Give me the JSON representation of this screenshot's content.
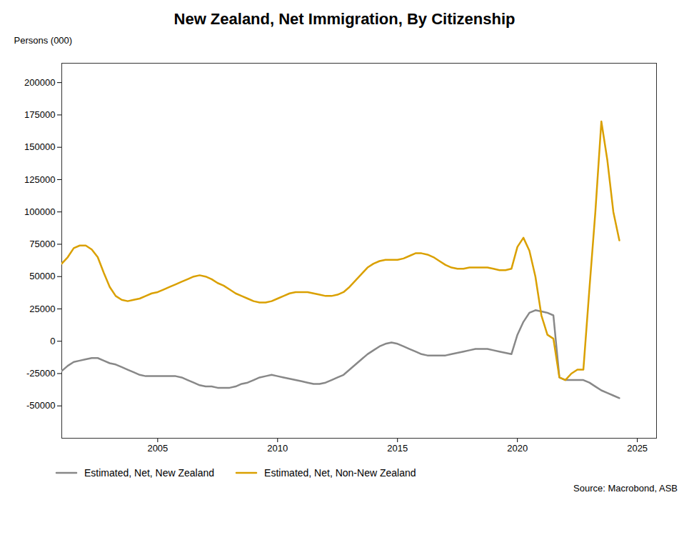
{
  "chart_data": {
    "type": "line",
    "title": "New Zealand, Net Immigration, By Citizenship",
    "ylabel": "Persons (000)",
    "annotations": [
      "Source: Macrobond, ASB"
    ],
    "x": [
      2001.0,
      2001.25,
      2001.5,
      2001.75,
      2002.0,
      2002.25,
      2002.5,
      2002.75,
      2003.0,
      2003.25,
      2003.5,
      2003.75,
      2004.0,
      2004.25,
      2004.5,
      2004.75,
      2005.0,
      2005.25,
      2005.5,
      2005.75,
      2006.0,
      2006.25,
      2006.5,
      2006.75,
      2007.0,
      2007.25,
      2007.5,
      2007.75,
      2008.0,
      2008.25,
      2008.5,
      2008.75,
      2009.0,
      2009.25,
      2009.5,
      2009.75,
      2010.0,
      2010.25,
      2010.5,
      2010.75,
      2011.0,
      2011.25,
      2011.5,
      2011.75,
      2012.0,
      2012.25,
      2012.5,
      2012.75,
      2013.0,
      2013.25,
      2013.5,
      2013.75,
      2014.0,
      2014.25,
      2014.5,
      2014.75,
      2015.0,
      2015.25,
      2015.5,
      2015.75,
      2016.0,
      2016.25,
      2016.5,
      2016.75,
      2017.0,
      2017.25,
      2017.5,
      2017.75,
      2018.0,
      2018.25,
      2018.5,
      2018.75,
      2019.0,
      2019.25,
      2019.5,
      2019.75,
      2020.0,
      2020.25,
      2020.5,
      2020.75,
      2021.0,
      2021.25,
      2021.5,
      2021.75,
      2022.0,
      2022.25,
      2022.5,
      2022.75,
      2023.0,
      2023.25,
      2023.5,
      2023.75,
      2024.0,
      2024.25
    ],
    "series": [
      {
        "name": "Estimated, Net, New Zealand",
        "color": "#888888",
        "values": [
          -23000,
          -19000,
          -16000,
          -15000,
          -14000,
          -13000,
          -13000,
          -15000,
          -17000,
          -18000,
          -20000,
          -22000,
          -24000,
          -26000,
          -27000,
          -27000,
          -27000,
          -27000,
          -27000,
          -27000,
          -28000,
          -30000,
          -32000,
          -34000,
          -35000,
          -35000,
          -36000,
          -36000,
          -36000,
          -35000,
          -33000,
          -32000,
          -30000,
          -28000,
          -27000,
          -26000,
          -27000,
          -28000,
          -29000,
          -30000,
          -31000,
          -32000,
          -33000,
          -33000,
          -32000,
          -30000,
          -28000,
          -26000,
          -22000,
          -18000,
          -14000,
          -10000,
          -7000,
          -4000,
          -2000,
          -1000,
          -2000,
          -4000,
          -6000,
          -8000,
          -10000,
          -11000,
          -11000,
          -11000,
          -11000,
          -10000,
          -9000,
          -8000,
          -7000,
          -6000,
          -6000,
          -6000,
          -7000,
          -8000,
          -9000,
          -10000,
          5000,
          15000,
          22000,
          24000,
          23000,
          22000,
          20000,
          -28000,
          -30000,
          -30000,
          -30000,
          -30000,
          -32000,
          -35000,
          -38000,
          -40000,
          -42000,
          -44000
        ]
      },
      {
        "name": "Estimated, Net, Non-New Zealand",
        "color": "#DAA000",
        "values": [
          60000,
          65000,
          72000,
          74000,
          74000,
          71000,
          65000,
          53000,
          42000,
          35000,
          32000,
          31000,
          32000,
          33000,
          35000,
          37000,
          38000,
          40000,
          42000,
          44000,
          46000,
          48000,
          50000,
          51000,
          50000,
          48000,
          45000,
          43000,
          40000,
          37000,
          35000,
          33000,
          31000,
          30000,
          30000,
          31000,
          33000,
          35000,
          37000,
          38000,
          38000,
          38000,
          37000,
          36000,
          35000,
          35000,
          36000,
          38000,
          42000,
          47000,
          52000,
          57000,
          60000,
          62000,
          63000,
          63000,
          63000,
          64000,
          66000,
          68000,
          68000,
          67000,
          65000,
          62000,
          59000,
          57000,
          56000,
          56000,
          57000,
          57000,
          57000,
          57000,
          56000,
          55000,
          55000,
          56000,
          73000,
          80000,
          70000,
          50000,
          20000,
          5000,
          2000,
          -28000,
          -30000,
          -25000,
          -22000,
          -22000,
          40000,
          100000,
          170000,
          140000,
          100000,
          78000
        ]
      }
    ],
    "xlim": [
      2001.0,
      2025.8
    ],
    "xticks": [
      2005,
      2010,
      2015,
      2020,
      2025
    ],
    "ylim": [
      -75000,
      215000
    ],
    "yticks": [
      -50000,
      -25000,
      0,
      25000,
      50000,
      75000,
      100000,
      125000,
      150000,
      175000,
      200000
    ],
    "grid": false,
    "legend": "bottom"
  }
}
